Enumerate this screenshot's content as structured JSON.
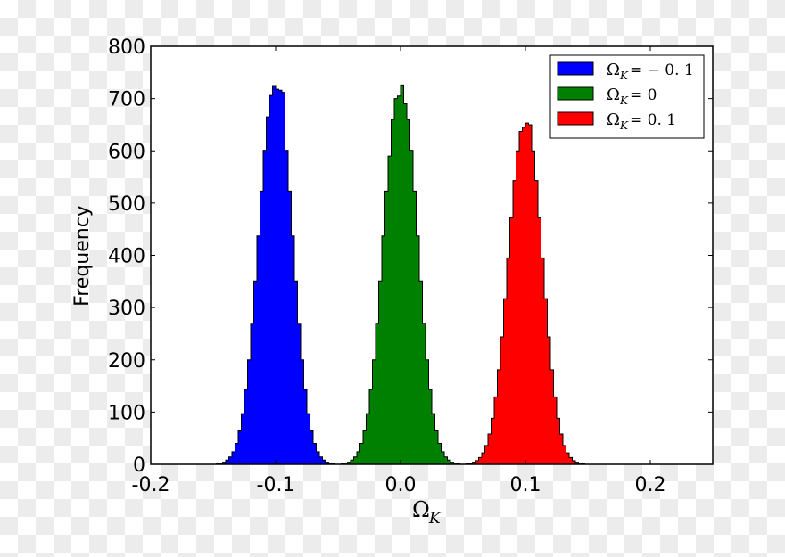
{
  "chart_data": {
    "type": "bar",
    "subtype": "histogram",
    "title": "",
    "xlabel": "Ω_K",
    "ylabel": "Frequency",
    "xlim": [
      -0.2,
      0.25
    ],
    "ylim": [
      0,
      800
    ],
    "xticks": [
      -0.2,
      -0.1,
      0.0,
      0.1,
      0.2
    ],
    "xtick_labels": [
      "-0.2",
      "-0.1",
      "0.0",
      "0.1",
      "0.2"
    ],
    "yticks": [
      0,
      100,
      200,
      300,
      400,
      500,
      600,
      700,
      800
    ],
    "ytick_labels": [
      "0",
      "100",
      "200",
      "300",
      "400",
      "500",
      "600",
      "700",
      "800"
    ],
    "grid": false,
    "legend_position": "upper right",
    "bin_width": 0.0025,
    "series": [
      {
        "name": "Ω_K = −0.1",
        "legend_main": "Ω",
        "legend_sub": "K",
        "legend_rest": "= − 0. 1",
        "color": "#0000ff",
        "center": -0.1,
        "bin_start": -0.1475,
        "values": [
          1,
          2,
          4,
          8,
          14,
          24,
          40,
          64,
          97,
          143,
          200,
          270,
          351,
          437,
          523,
          601,
          665,
          706,
          725,
          718,
          716,
          712,
          601,
          523,
          437,
          351,
          270,
          200,
          143,
          97,
          64,
          40,
          24,
          14,
          8,
          4,
          2,
          1
        ]
      },
      {
        "name": "Ω_K = 0",
        "legend_main": "Ω",
        "legend_sub": "K",
        "legend_rest": "= 0",
        "color": "#008000",
        "center": 0.0,
        "bin_start": -0.0475,
        "values": [
          1,
          2,
          4,
          8,
          14,
          24,
          40,
          64,
          97,
          143,
          200,
          270,
          351,
          437,
          523,
          590,
          660,
          700,
          705,
          726,
          690,
          660,
          601,
          523,
          437,
          351,
          270,
          200,
          143,
          97,
          64,
          40,
          24,
          14,
          8,
          4,
          2,
          1
        ]
      },
      {
        "name": "Ω_K = 0.1",
        "legend_main": "Ω",
        "legend_sub": "K",
        "legend_rest": "= 0. 1",
        "color": "#ff0000",
        "center": 0.1,
        "bin_start": 0.0525,
        "values": [
          1,
          2,
          4,
          7,
          13,
          22,
          36,
          58,
          88,
          129,
          181,
          244,
          317,
          395,
          472,
          543,
          600,
          637,
          645,
          653,
          650,
          600,
          543,
          472,
          395,
          317,
          244,
          181,
          129,
          88,
          58,
          36,
          22,
          13,
          7,
          4,
          2,
          1
        ]
      }
    ]
  }
}
